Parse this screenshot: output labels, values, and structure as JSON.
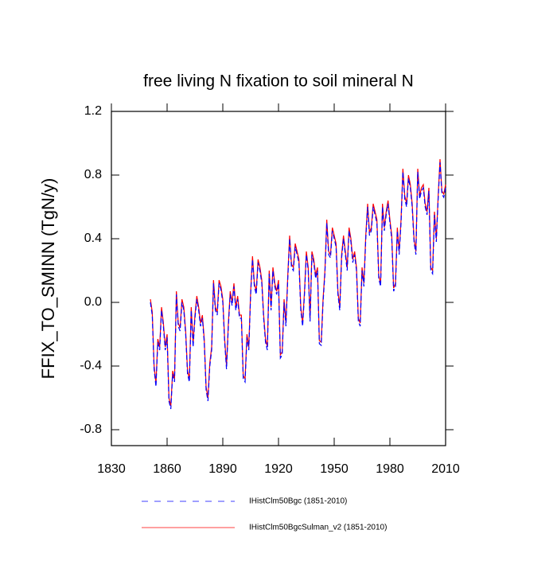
{
  "chart_data": {
    "type": "line",
    "title": "free living N fixation to soil mineral N",
    "y_label": "FFIX_TO_SMINN  (TgN/y)",
    "x": [
      1851,
      1852,
      1853,
      1854,
      1855,
      1856,
      1857,
      1858,
      1859,
      1860,
      1861,
      1862,
      1863,
      1864,
      1865,
      1866,
      1867,
      1868,
      1869,
      1870,
      1871,
      1872,
      1873,
      1874,
      1875,
      1876,
      1877,
      1878,
      1879,
      1880,
      1881,
      1882,
      1883,
      1884,
      1885,
      1886,
      1887,
      1888,
      1889,
      1890,
      1891,
      1892,
      1893,
      1894,
      1895,
      1896,
      1897,
      1898,
      1899,
      1900,
      1901,
      1902,
      1903,
      1904,
      1905,
      1906,
      1907,
      1908,
      1909,
      1910,
      1911,
      1912,
      1913,
      1914,
      1915,
      1916,
      1917,
      1918,
      1919,
      1920,
      1921,
      1922,
      1923,
      1924,
      1925,
      1926,
      1927,
      1928,
      1929,
      1930,
      1931,
      1932,
      1933,
      1934,
      1935,
      1936,
      1937,
      1938,
      1939,
      1940,
      1941,
      1942,
      1943,
      1944,
      1945,
      1946,
      1947,
      1948,
      1949,
      1950,
      1951,
      1952,
      1953,
      1954,
      1955,
      1956,
      1957,
      1958,
      1959,
      1960,
      1961,
      1962,
      1963,
      1964,
      1965,
      1966,
      1967,
      1968,
      1969,
      1970,
      1971,
      1972,
      1973,
      1974,
      1975,
      1976,
      1977,
      1978,
      1979,
      1980,
      1981,
      1982,
      1983,
      1984,
      1985,
      1986,
      1987,
      1988,
      1989,
      1990,
      1991,
      1992,
      1993,
      1994,
      1995,
      1996,
      1997,
      1998,
      1999,
      2000,
      2001,
      2002,
      2003,
      2004,
      2005,
      2006,
      2007,
      2008,
      2009,
      2010
    ],
    "series": [
      {
        "name": "IHistClm50Bgc (1851-2010)",
        "color": "#0000ff",
        "dashed": true,
        "values": [
          0.0,
          -0.08,
          -0.42,
          -0.53,
          -0.25,
          -0.3,
          -0.05,
          -0.15,
          -0.3,
          -0.22,
          -0.62,
          -0.67,
          -0.45,
          -0.5,
          0.05,
          -0.15,
          -0.18,
          0.0,
          -0.05,
          -0.2,
          -0.45,
          -0.5,
          -0.05,
          -0.28,
          -0.1,
          0.02,
          -0.05,
          -0.15,
          -0.1,
          -0.25,
          -0.55,
          -0.62,
          -0.4,
          -0.3,
          0.12,
          -0.05,
          -0.08,
          0.12,
          0.08,
          0.0,
          -0.25,
          -0.42,
          -0.15,
          0.05,
          -0.02,
          0.1,
          -0.05,
          0.02,
          -0.1,
          -0.1,
          -0.48,
          -0.5,
          -0.22,
          -0.3,
          0.05,
          0.27,
          0.1,
          0.05,
          0.25,
          0.2,
          0.12,
          -0.1,
          -0.25,
          -0.3,
          0.18,
          -0.05,
          0.2,
          0.1,
          0.05,
          0.12,
          -0.35,
          -0.33,
          0.0,
          -0.15,
          0.15,
          0.4,
          0.22,
          0.2,
          0.35,
          0.3,
          0.25,
          -0.05,
          -0.15,
          0.05,
          0.3,
          0.2,
          -0.12,
          0.3,
          0.25,
          0.15,
          0.2,
          -0.26,
          -0.27,
          0.0,
          0.18,
          0.5,
          0.3,
          0.28,
          0.45,
          0.4,
          0.35,
          0.05,
          -0.05,
          0.28,
          0.4,
          0.3,
          0.2,
          0.45,
          0.38,
          0.25,
          0.3,
          0.2,
          -0.12,
          -0.15,
          0.2,
          0.1,
          0.4,
          0.6,
          0.42,
          0.45,
          0.6,
          0.55,
          0.5,
          0.15,
          0.1,
          0.6,
          0.45,
          0.55,
          0.62,
          0.5,
          0.4,
          0.07,
          0.1,
          0.45,
          0.3,
          0.5,
          0.82,
          0.65,
          0.6,
          0.78,
          0.72,
          0.6,
          0.38,
          0.3,
          0.82,
          0.65,
          0.7,
          0.72,
          0.6,
          0.55,
          0.7,
          0.2,
          0.18,
          0.55,
          0.38,
          0.65,
          0.88,
          0.68,
          0.66,
          0.72
        ]
      },
      {
        "name": "IHistClm50BgcSulman_v2 (1851-2010)",
        "color": "#ff0000",
        "dashed": false,
        "values": [
          0.02,
          -0.06,
          -0.4,
          -0.51,
          -0.23,
          -0.28,
          -0.03,
          -0.13,
          -0.28,
          -0.2,
          -0.6,
          -0.65,
          -0.43,
          -0.48,
          0.07,
          -0.13,
          -0.16,
          0.02,
          -0.03,
          -0.18,
          -0.43,
          -0.48,
          -0.03,
          -0.26,
          -0.08,
          0.04,
          -0.03,
          -0.13,
          -0.08,
          -0.23,
          -0.53,
          -0.6,
          -0.38,
          -0.28,
          0.14,
          -0.03,
          -0.06,
          0.14,
          0.1,
          0.02,
          -0.23,
          -0.4,
          -0.13,
          0.07,
          0.0,
          0.12,
          -0.03,
          0.04,
          -0.08,
          -0.08,
          -0.46,
          -0.48,
          -0.2,
          -0.28,
          0.07,
          0.29,
          0.12,
          0.07,
          0.27,
          0.22,
          0.14,
          -0.08,
          -0.23,
          -0.28,
          0.2,
          -0.03,
          0.22,
          0.12,
          0.07,
          0.14,
          -0.33,
          -0.31,
          0.02,
          -0.13,
          0.17,
          0.42,
          0.24,
          0.22,
          0.37,
          0.32,
          0.27,
          -0.03,
          -0.13,
          0.07,
          0.32,
          0.22,
          -0.1,
          0.32,
          0.27,
          0.17,
          0.22,
          -0.24,
          -0.25,
          0.02,
          0.2,
          0.52,
          0.32,
          0.3,
          0.47,
          0.42,
          0.37,
          0.07,
          -0.03,
          0.3,
          0.42,
          0.32,
          0.22,
          0.47,
          0.4,
          0.27,
          0.32,
          0.22,
          -0.1,
          -0.13,
          0.22,
          0.12,
          0.42,
          0.62,
          0.44,
          0.47,
          0.62,
          0.57,
          0.52,
          0.17,
          0.12,
          0.62,
          0.47,
          0.57,
          0.64,
          0.52,
          0.42,
          0.09,
          0.12,
          0.47,
          0.32,
          0.52,
          0.84,
          0.67,
          0.62,
          0.8,
          0.74,
          0.62,
          0.4,
          0.32,
          0.84,
          0.67,
          0.72,
          0.74,
          0.62,
          0.57,
          0.72,
          0.22,
          0.2,
          0.57,
          0.4,
          0.67,
          0.9,
          0.7,
          0.68,
          0.74
        ]
      }
    ],
    "xlim": [
      1830,
      2010
    ],
    "xticks": [
      1830,
      1860,
      1890,
      1920,
      1950,
      1980,
      2010
    ],
    "ylim": [
      -0.9,
      1.2
    ],
    "yticks": [
      -0.8,
      -0.4,
      {
        "value": 0,
        "label": "0.0"
      },
      0.4,
      0.8,
      1.2
    ]
  }
}
